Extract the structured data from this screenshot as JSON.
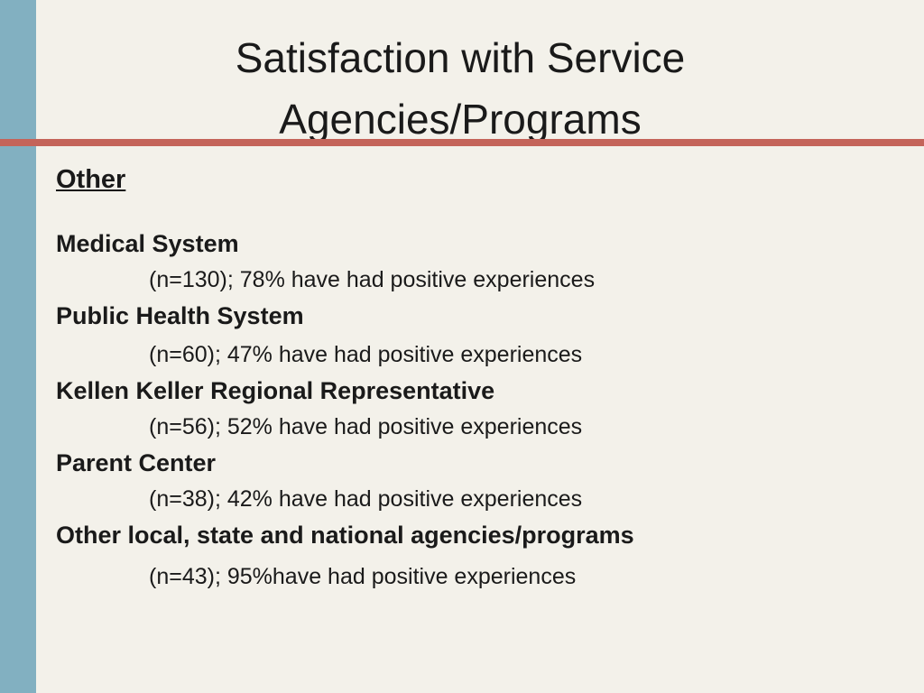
{
  "title_line1": "Satisfaction with Service",
  "title_line2": "Agencies/Programs",
  "section_label": "Other",
  "entries": [
    {
      "name": "Medical System",
      "detail": "(n=130); 78% have had positive experiences"
    },
    {
      "name": "Public Health System",
      "detail": "(n=60); 47% have had positive experiences"
    },
    {
      "name": "Kellen Keller Regional Representative",
      "detail": "(n=56); 52% have had positive experiences"
    },
    {
      "name": "Parent Center",
      "detail": "(n=38); 42% have had positive experiences"
    },
    {
      "name": "Other local, state and national agencies/programs",
      "detail": "(n=43); 95%have had positive experiences"
    }
  ],
  "colors": {
    "background": "#f3f1ea",
    "left_bar": "#82b0c1",
    "rule": "#c4645a"
  }
}
